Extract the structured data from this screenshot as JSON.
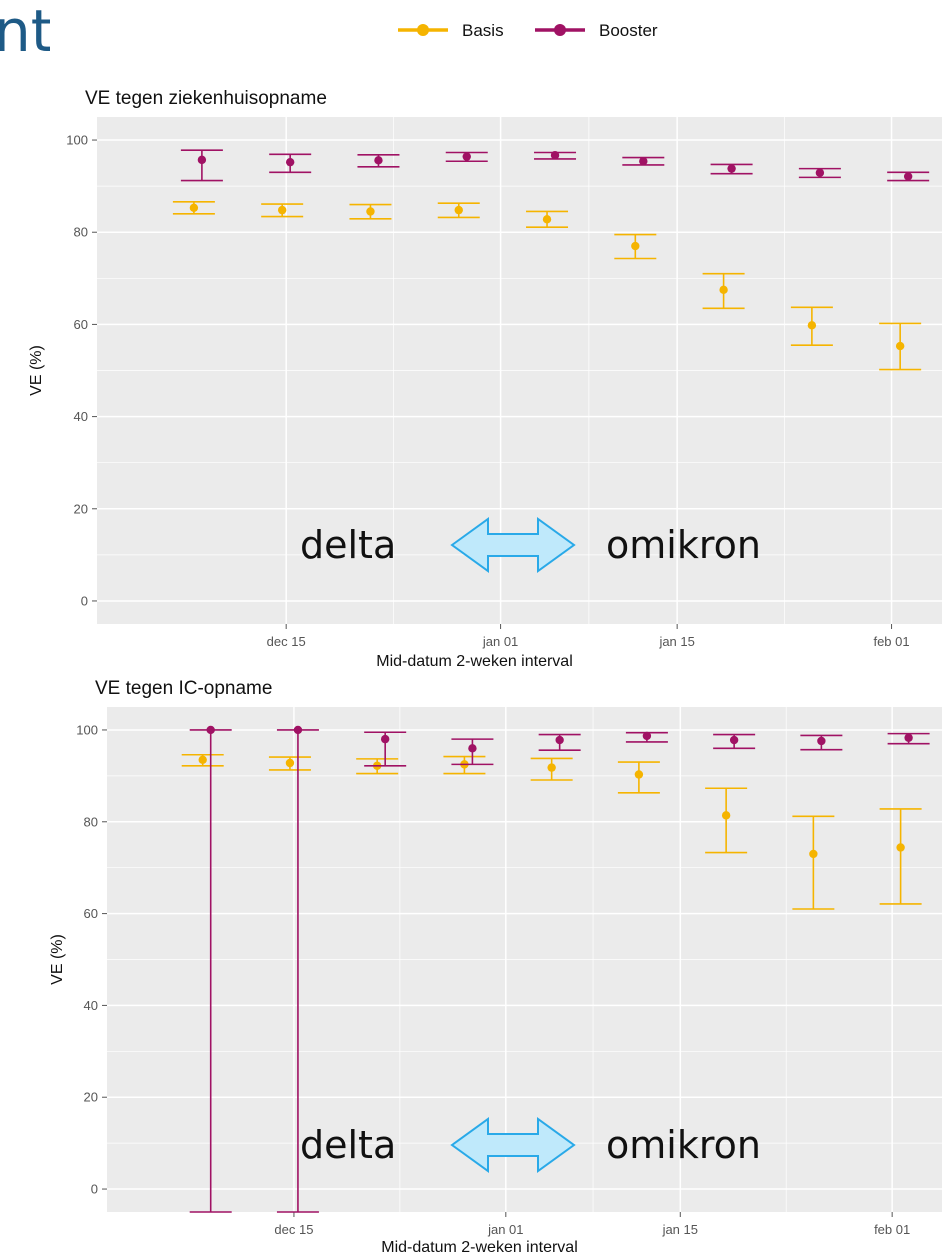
{
  "header": {
    "fragment": "nt"
  },
  "colors": {
    "basis": "#f5b400",
    "booster": "#a01264",
    "panel_bg": "#ebebeb",
    "grid": "#ffffff",
    "arrow_fill": "#bfe9fb",
    "arrow_stroke": "#29a9e8"
  },
  "legend": {
    "items": [
      {
        "label": "Basis",
        "color": "#f5b400"
      },
      {
        "label": "Booster",
        "color": "#a01264"
      }
    ],
    "placement": "top-center"
  },
  "annotation": {
    "left": "delta",
    "right": "omikron",
    "icon": "double-arrow-icon"
  },
  "chart_data": [
    {
      "type": "scatter",
      "title": "VE tegen ziekenhuisopname",
      "xlabel": "Mid-datum 2-weken interval",
      "ylabel": "VE (%)",
      "ylim": [
        -5,
        105
      ],
      "xticks": [
        {
          "date": "2021-12-15",
          "label": "dec 15"
        },
        {
          "date": "2022-01-01",
          "label": "jan 01"
        },
        {
          "date": "2022-01-15",
          "label": "jan 15"
        },
        {
          "date": "2022-02-01",
          "label": "feb 01"
        }
      ],
      "yticks": [
        0,
        20,
        40,
        60,
        80,
        100
      ],
      "grid": true,
      "series": [
        {
          "name": "Basis",
          "points": [
            {
              "x": "2021-12-08",
              "y": 85.3,
              "lo": 84.0,
              "hi": 86.6
            },
            {
              "x": "2021-12-15",
              "y": 84.8,
              "lo": 83.4,
              "hi": 86.1
            },
            {
              "x": "2021-12-22",
              "y": 84.5,
              "lo": 82.9,
              "hi": 86.0
            },
            {
              "x": "2021-12-29",
              "y": 84.8,
              "lo": 83.2,
              "hi": 86.3
            },
            {
              "x": "2022-01-05",
              "y": 82.8,
              "lo": 81.1,
              "hi": 84.5
            },
            {
              "x": "2022-01-12",
              "y": 77.0,
              "lo": 74.3,
              "hi": 79.5
            },
            {
              "x": "2022-01-19",
              "y": 67.5,
              "lo": 63.5,
              "hi": 71.0
            },
            {
              "x": "2022-01-26",
              "y": 59.8,
              "lo": 55.5,
              "hi": 63.7
            },
            {
              "x": "2022-02-02",
              "y": 55.3,
              "lo": 50.2,
              "hi": 60.2
            }
          ]
        },
        {
          "name": "Booster",
          "points": [
            {
              "x": "2021-12-08",
              "y": 95.7,
              "lo": 91.2,
              "hi": 97.8
            },
            {
              "x": "2021-12-15",
              "y": 95.2,
              "lo": 93.0,
              "hi": 96.9
            },
            {
              "x": "2021-12-22",
              "y": 95.6,
              "lo": 94.2,
              "hi": 96.8
            },
            {
              "x": "2021-12-29",
              "y": 96.4,
              "lo": 95.4,
              "hi": 97.3
            },
            {
              "x": "2022-01-05",
              "y": 96.7,
              "lo": 95.9,
              "hi": 97.3
            },
            {
              "x": "2022-01-12",
              "y": 95.4,
              "lo": 94.6,
              "hi": 96.2
            },
            {
              "x": "2022-01-19",
              "y": 93.8,
              "lo": 92.7,
              "hi": 94.7
            },
            {
              "x": "2022-01-26",
              "y": 92.9,
              "lo": 91.9,
              "hi": 93.8
            },
            {
              "x": "2022-02-02",
              "y": 92.1,
              "lo": 91.2,
              "hi": 93.0
            }
          ]
        }
      ]
    },
    {
      "type": "scatter",
      "title": "VE tegen IC-opname",
      "xlabel": "Mid-datum 2-weken interval",
      "ylabel": "VE (%)",
      "ylim": [
        -5,
        105
      ],
      "xticks": [
        {
          "date": "2021-12-15",
          "label": "dec 15"
        },
        {
          "date": "2022-01-01",
          "label": "jan 01"
        },
        {
          "date": "2022-01-15",
          "label": "jan 15"
        },
        {
          "date": "2022-02-01",
          "label": "feb 01"
        }
      ],
      "yticks": [
        0,
        20,
        40,
        60,
        80,
        100
      ],
      "grid": true,
      "series": [
        {
          "name": "Basis",
          "points": [
            {
              "x": "2021-12-08",
              "y": 93.5,
              "lo": 92.2,
              "hi": 94.6
            },
            {
              "x": "2021-12-15",
              "y": 92.8,
              "lo": 91.3,
              "hi": 94.1
            },
            {
              "x": "2021-12-22",
              "y": 92.2,
              "lo": 90.5,
              "hi": 93.7
            },
            {
              "x": "2021-12-29",
              "y": 92.5,
              "lo": 90.5,
              "hi": 94.2
            },
            {
              "x": "2022-01-05",
              "y": 91.8,
              "lo": 89.1,
              "hi": 93.8
            },
            {
              "x": "2022-01-12",
              "y": 90.3,
              "lo": 86.3,
              "hi": 93.0
            },
            {
              "x": "2022-01-19",
              "y": 81.4,
              "lo": 73.3,
              "hi": 87.3
            },
            {
              "x": "2022-01-26",
              "y": 73.0,
              "lo": 61.0,
              "hi": 81.2
            },
            {
              "x": "2022-02-02",
              "y": 74.4,
              "lo": 62.1,
              "hi": 82.8
            }
          ]
        },
        {
          "name": "Booster",
          "points": [
            {
              "x": "2021-12-08",
              "y": 100.0,
              "lo": -5,
              "hi": 100.0
            },
            {
              "x": "2021-12-15",
              "y": 100.0,
              "lo": -5,
              "hi": 100.0
            },
            {
              "x": "2021-12-22",
              "y": 98.0,
              "lo": 92.2,
              "hi": 99.5
            },
            {
              "x": "2021-12-29",
              "y": 96.0,
              "lo": 92.5,
              "hi": 98.0
            },
            {
              "x": "2022-01-05",
              "y": 97.8,
              "lo": 95.6,
              "hi": 99.0
            },
            {
              "x": "2022-01-12",
              "y": 98.7,
              "lo": 97.4,
              "hi": 99.4
            },
            {
              "x": "2022-01-19",
              "y": 97.8,
              "lo": 96.0,
              "hi": 99.0
            },
            {
              "x": "2022-01-26",
              "y": 97.6,
              "lo": 95.7,
              "hi": 98.8
            },
            {
              "x": "2022-02-02",
              "y": 98.3,
              "lo": 97.0,
              "hi": 99.2
            }
          ]
        }
      ]
    }
  ]
}
